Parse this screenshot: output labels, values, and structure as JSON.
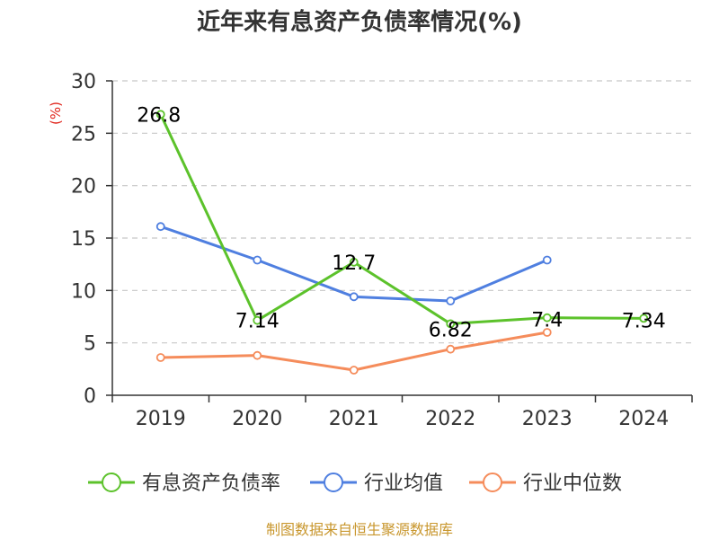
{
  "chart_data": {
    "type": "line",
    "title": "近年来有息资产负债率情况(%)",
    "ylabel_unit": "(%)",
    "categories": [
      "2019",
      "2020",
      "2021",
      "2022",
      "2023",
      "2024"
    ],
    "ylim": [
      0,
      30
    ],
    "yticks": [
      0,
      5,
      10,
      15,
      20,
      25,
      30
    ],
    "grid": true,
    "legend_position": "bottom",
    "series": [
      {
        "name": "有息资产负债率",
        "color": "#5cc22b",
        "values": [
          26.8,
          7.14,
          12.7,
          6.82,
          7.4,
          7.34
        ],
        "labels": [
          "26.8",
          "7.14",
          "12.7",
          "6.82",
          "7.4",
          "7.34"
        ]
      },
      {
        "name": "行业均值",
        "color": "#4f7fe0",
        "values": [
          16.1,
          12.9,
          9.4,
          9.0,
          12.9,
          null
        ]
      },
      {
        "name": "行业中位数",
        "color": "#f58c5b",
        "values": [
          3.6,
          3.8,
          2.4,
          4.4,
          6.0,
          null
        ]
      }
    ],
    "source": "制图数据来自恒生聚源数据库"
  }
}
